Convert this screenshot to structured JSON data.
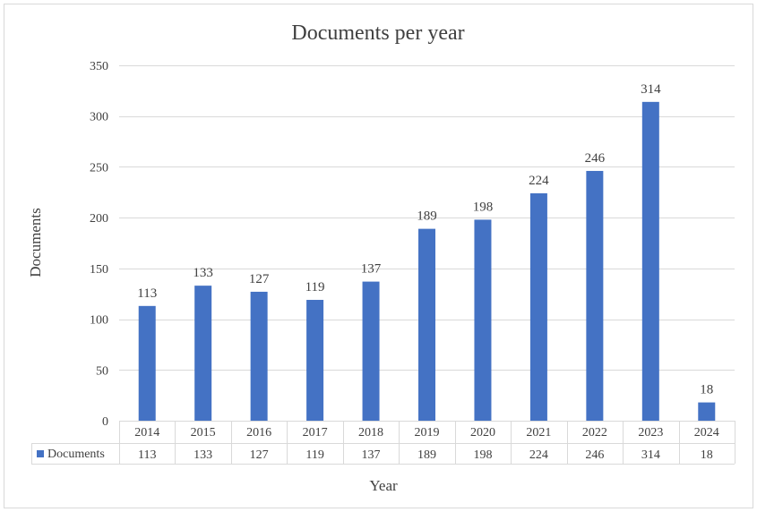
{
  "chart_data": {
    "type": "bar",
    "title": "Documents per year",
    "xlabel": "Year",
    "ylabel": "Documents",
    "categories": [
      "2014",
      "2015",
      "2016",
      "2017",
      "2018",
      "2019",
      "2020",
      "2021",
      "2022",
      "2023",
      "2024"
    ],
    "series": [
      {
        "name": "Documents",
        "values": [
          113,
          133,
          127,
          119,
          137,
          189,
          198,
          224,
          246,
          314,
          18
        ],
        "color": "#4472C4"
      }
    ],
    "ylim": [
      0,
      350
    ],
    "yticks": [
      0,
      50,
      100,
      150,
      200,
      250,
      300,
      350
    ],
    "grid": true,
    "data_labels": true,
    "data_table": true,
    "legend": "data-table"
  }
}
